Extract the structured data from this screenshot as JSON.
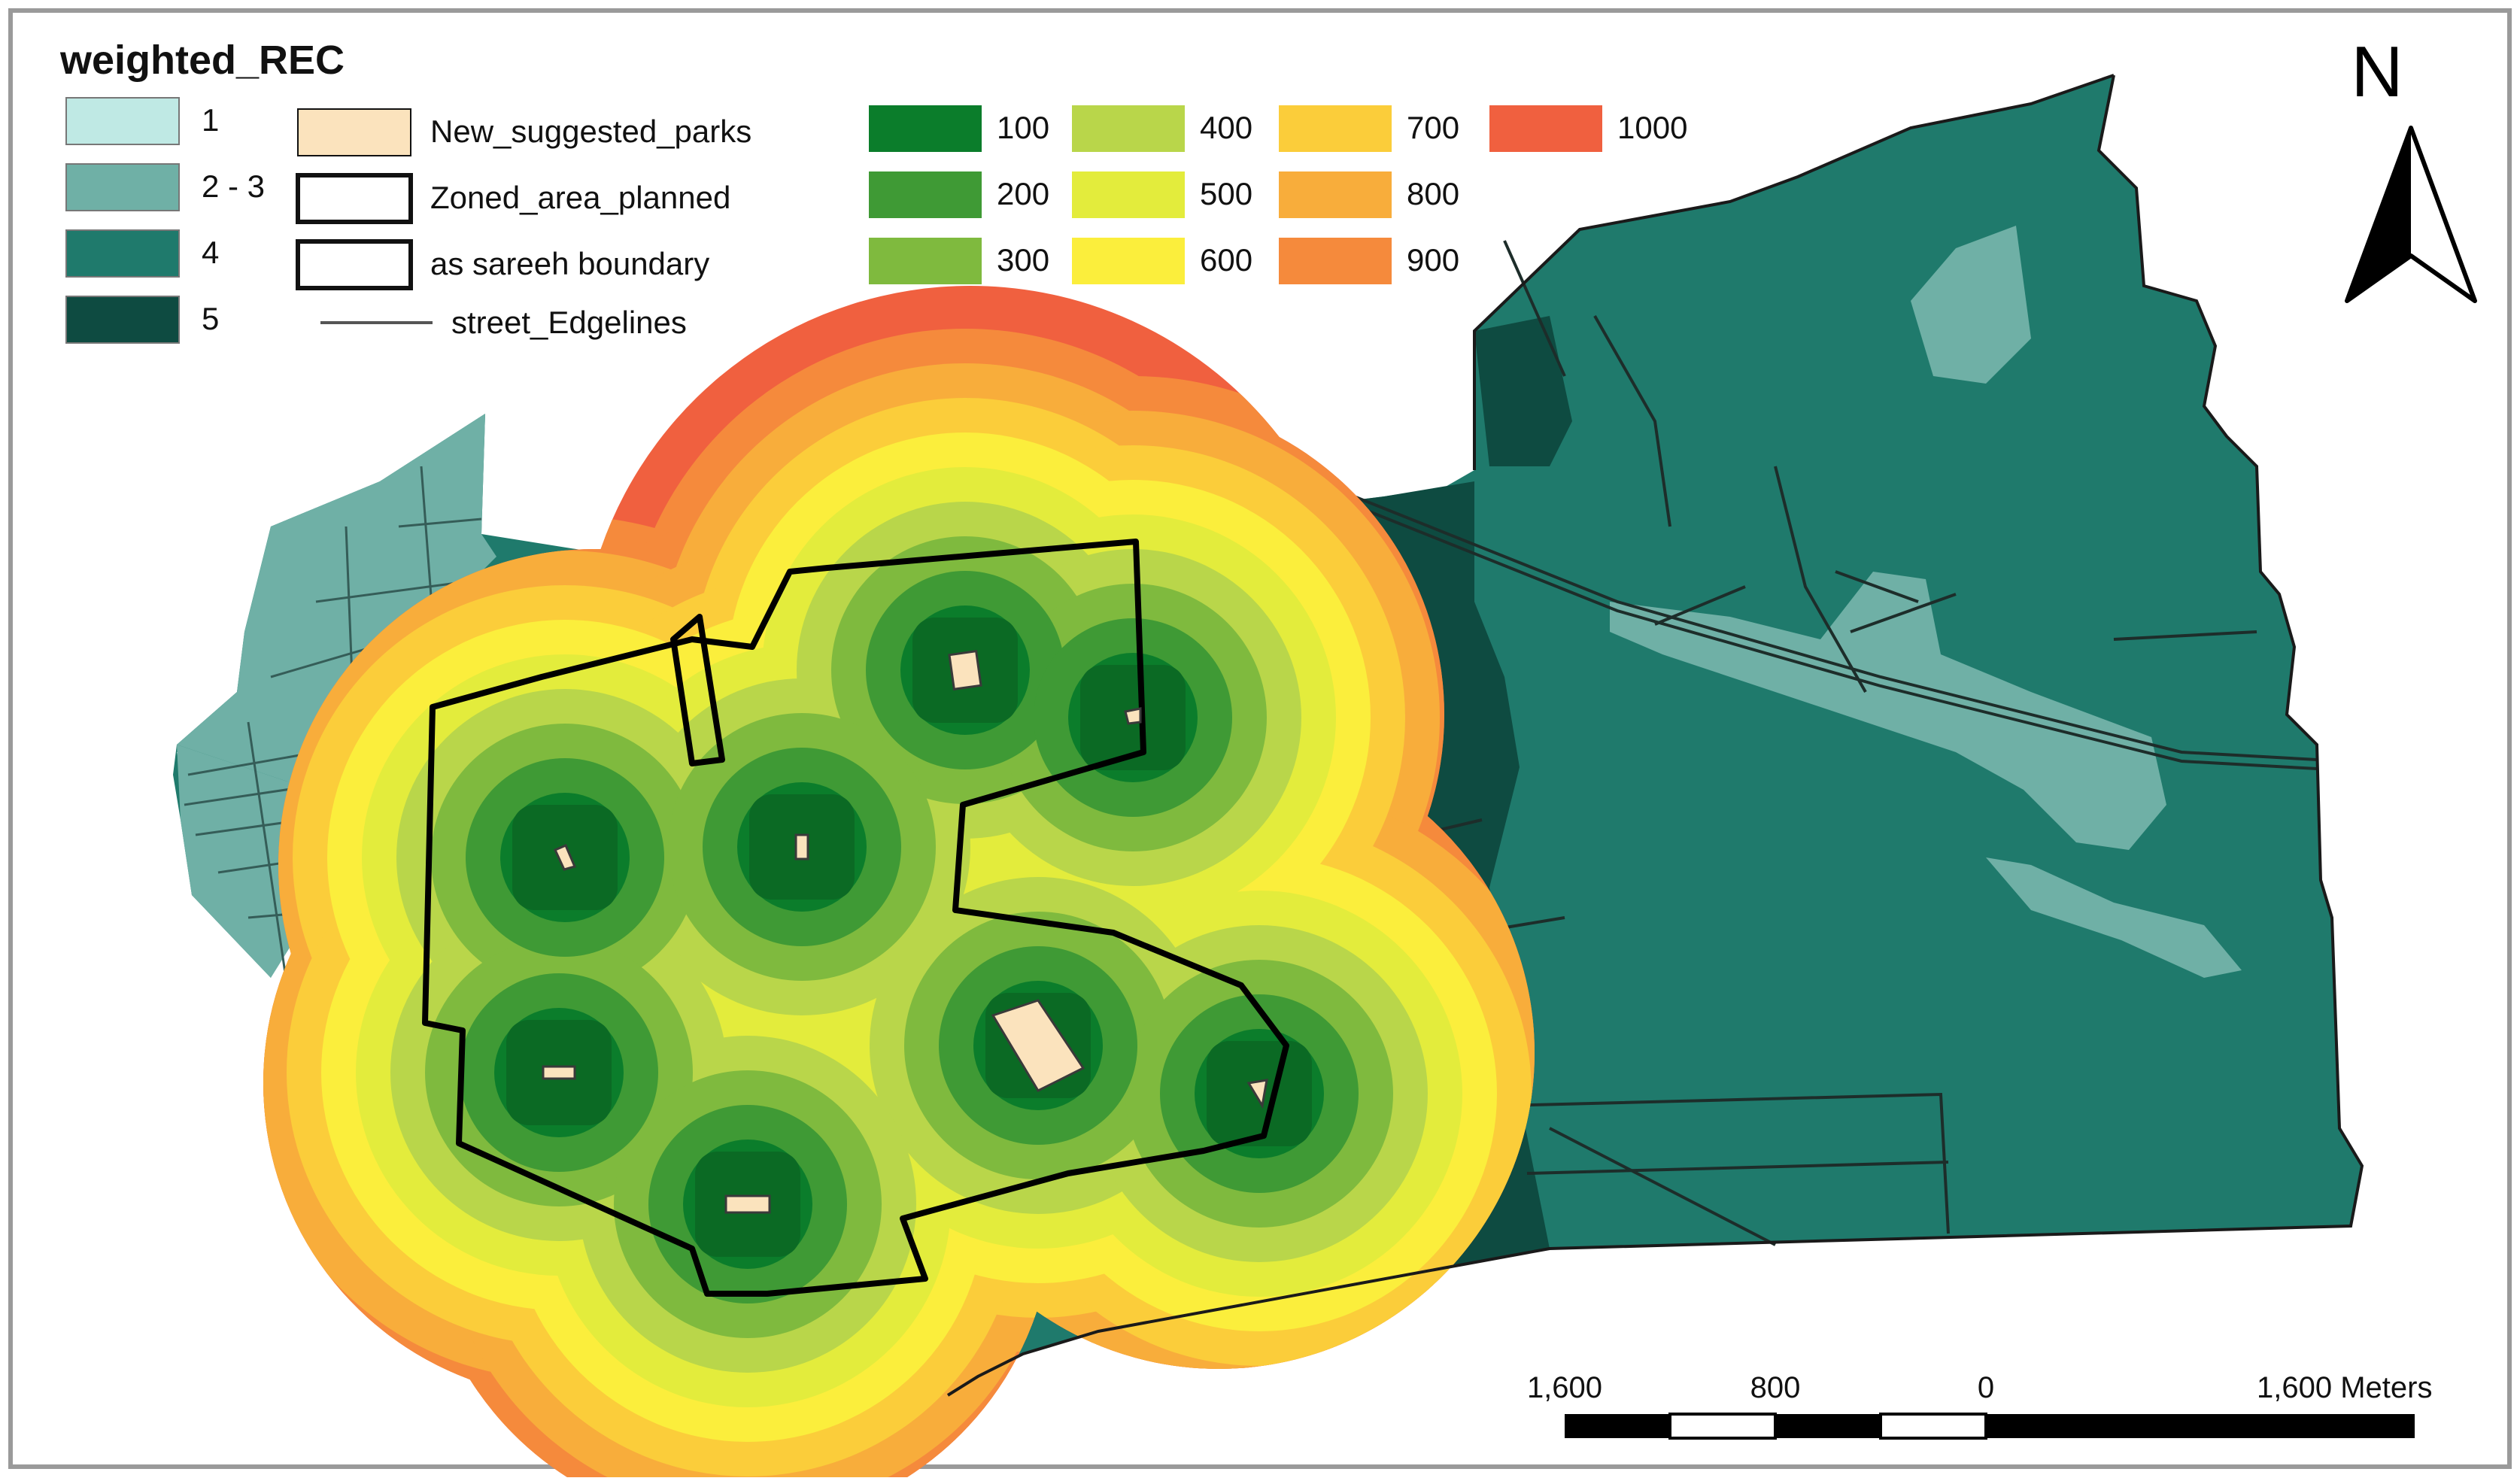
{
  "legend": {
    "title": "weighted_REC",
    "rec_classes": [
      {
        "label": "1",
        "color": "#bfe9e4"
      },
      {
        "label": "2 - 3",
        "color": "#6fb0a6"
      },
      {
        "label": "4",
        "color": "#1f7a6c"
      },
      {
        "label": "5",
        "color": "#0e4b41"
      }
    ],
    "layers": [
      {
        "label": "New_suggested_parks",
        "color": "#fbe3bd"
      },
      {
        "label": "Zoned_area_planned",
        "color": "#ffffff"
      },
      {
        "label": "as sareeh boundary",
        "color": "#ffffff"
      },
      {
        "label": "street_Edgelines",
        "color": "#555555"
      }
    ],
    "distance_classes": [
      {
        "label": "100",
        "color": "#0b7d2b"
      },
      {
        "label": "200",
        "color": "#3f9a35"
      },
      {
        "label": "300",
        "color": "#7fba3e"
      },
      {
        "label": "400",
        "color": "#b9d64a"
      },
      {
        "label": "500",
        "color": "#e3ec3c"
      },
      {
        "label": "600",
        "color": "#fbee3c"
      },
      {
        "label": "700",
        "color": "#fbcd3a"
      },
      {
        "label": "800",
        "color": "#f8ad3b"
      },
      {
        "label": "900",
        "color": "#f58a3c"
      },
      {
        "label": "1000",
        "color": "#f0603f"
      }
    ]
  },
  "north_arrow": {
    "label": "N"
  },
  "scale_bar": {
    "labels": [
      "1,600",
      "800",
      "0",
      "1,600 Meters"
    ]
  }
}
